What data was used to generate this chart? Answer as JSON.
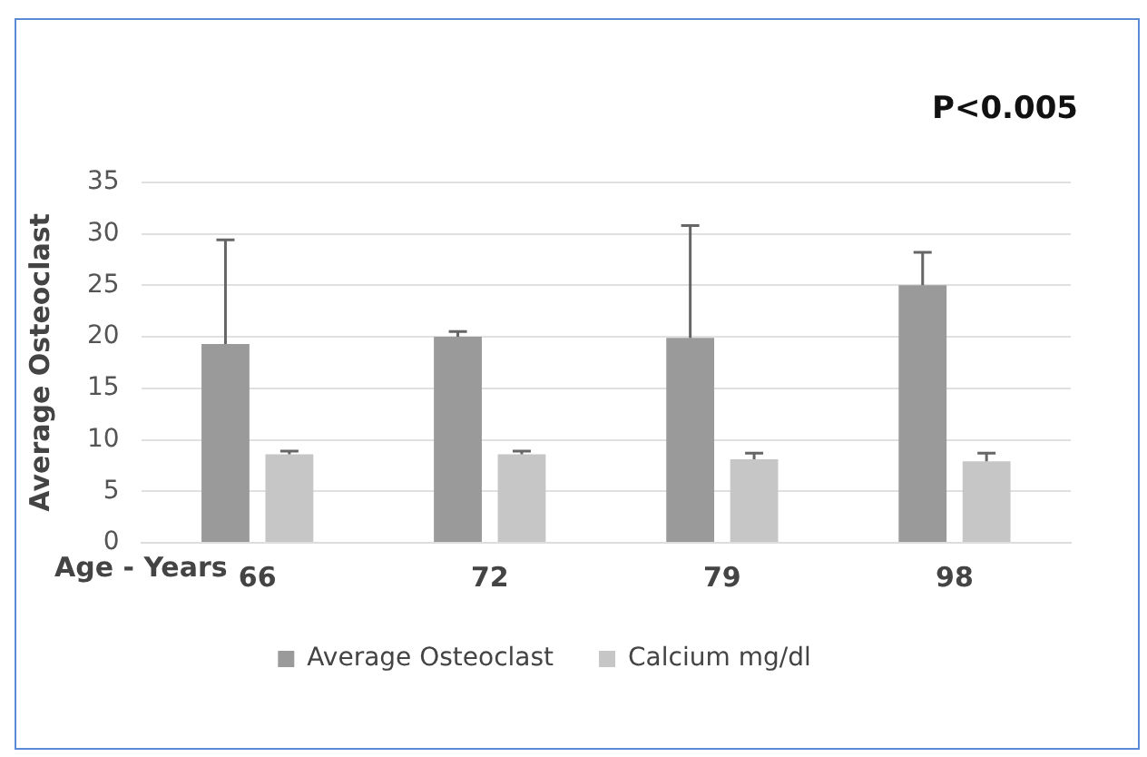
{
  "chart_data": {
    "type": "bar",
    "ylabel": "Average Osteoclast",
    "xlabel": "Age - Years",
    "annotations": [
      "P<0.005"
    ],
    "categories": [
      "66",
      "72",
      "79",
      "98"
    ],
    "series": [
      {
        "name": "Average Osteoclast",
        "color": "#9a9a9a",
        "values": [
          19.3,
          20,
          19.9,
          25
        ],
        "errors": [
          [
            19.3,
            29.4
          ],
          [
            20,
            20.5
          ],
          [
            19.9,
            30.8
          ],
          [
            25,
            28.2
          ]
        ]
      },
      {
        "name": "Calcium mg/dl",
        "color": "#c6c6c6",
        "values": [
          8.6,
          8.6,
          8.1,
          7.9
        ],
        "errors": [
          [
            8.6,
            8.9
          ],
          [
            8.6,
            8.9
          ],
          [
            8.1,
            8.7
          ],
          [
            7.9,
            8.7
          ]
        ]
      }
    ],
    "ylim": [
      0,
      35
    ],
    "yticks": [
      0,
      5,
      10,
      15,
      20,
      25,
      30,
      35
    ],
    "grid": "y",
    "legend": "bottom"
  }
}
